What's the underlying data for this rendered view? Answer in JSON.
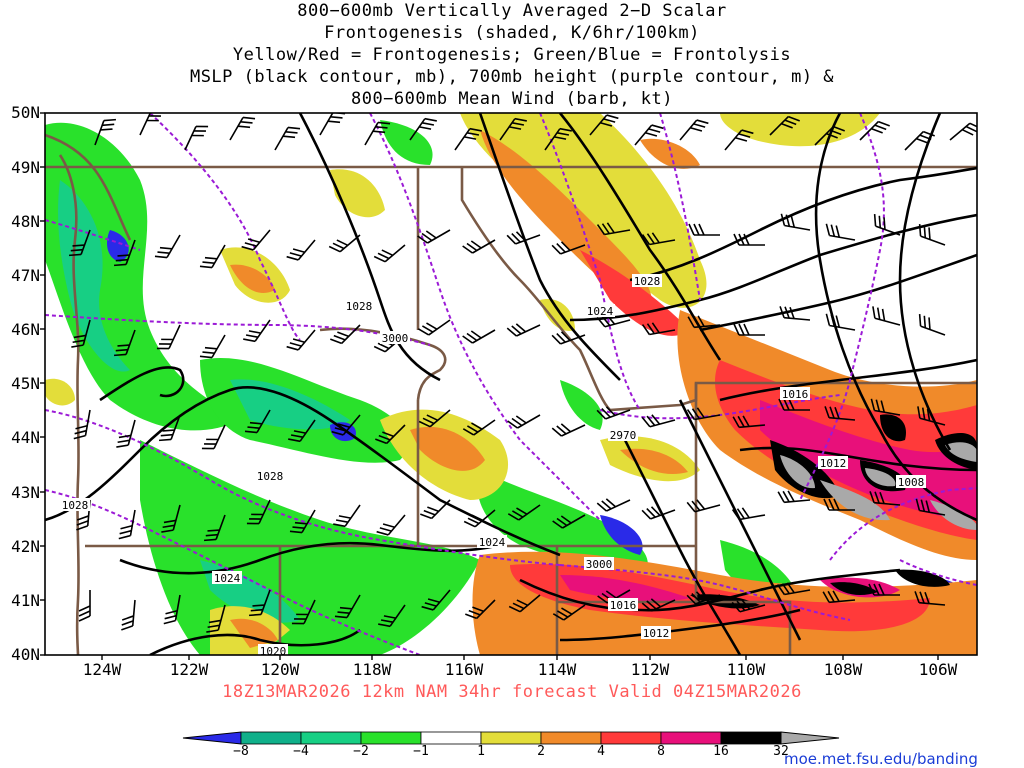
{
  "title_lines": [
    "800−600mb Vertically Averaged 2−D Scalar",
    "Frontogenesis (shaded, K/6hr/100km)",
    "Yellow/Red = Frontogenesis;  Green/Blue = Frontolysis",
    "MSLP (black contour, mb), 700mb height (purple contour, m) &",
    "800−600mb Mean Wind (barb, kt)"
  ],
  "lat_labels": [
    "50N",
    "49N",
    "48N",
    "47N",
    "46N",
    "45N",
    "44N",
    "43N",
    "42N",
    "41N",
    "40N"
  ],
  "lon_labels": [
    "124W",
    "122W",
    "120W",
    "118W",
    "116W",
    "114W",
    "112W",
    "110W",
    "108W",
    "106W"
  ],
  "model_info": "18Z13MAR2026 12km NAM 34hr forecast Valid 04Z15MAR2026",
  "credit": "moe.met.fsu.edu/banding",
  "colorbar": {
    "labels": [
      "−8",
      "−4",
      "−2",
      "−1",
      "1",
      "2",
      "4",
      "8",
      "16",
      "32"
    ],
    "colors": [
      "#2a2ae8",
      "#10b08a",
      "#17cf84",
      "#29e12b",
      "#ffffff",
      "#e3dd3a",
      "#f08a2a",
      "#ff3a3a",
      "#e8107a",
      "#000000"
    ],
    "over_color": "#a9a9a9"
  },
  "contour_labels": {
    "mslp": [
      "1028",
      "1028",
      "1028",
      "1028",
      "1024",
      "1024",
      "1024",
      "1020",
      "1016",
      "1016",
      "1012",
      "1012",
      "1008"
    ],
    "height": [
      "3000",
      "2970",
      "3000"
    ]
  },
  "map": {
    "mslp_color": "#000000",
    "height_color": "#9b1ad6",
    "border_color": "#7a5a46"
  }
}
